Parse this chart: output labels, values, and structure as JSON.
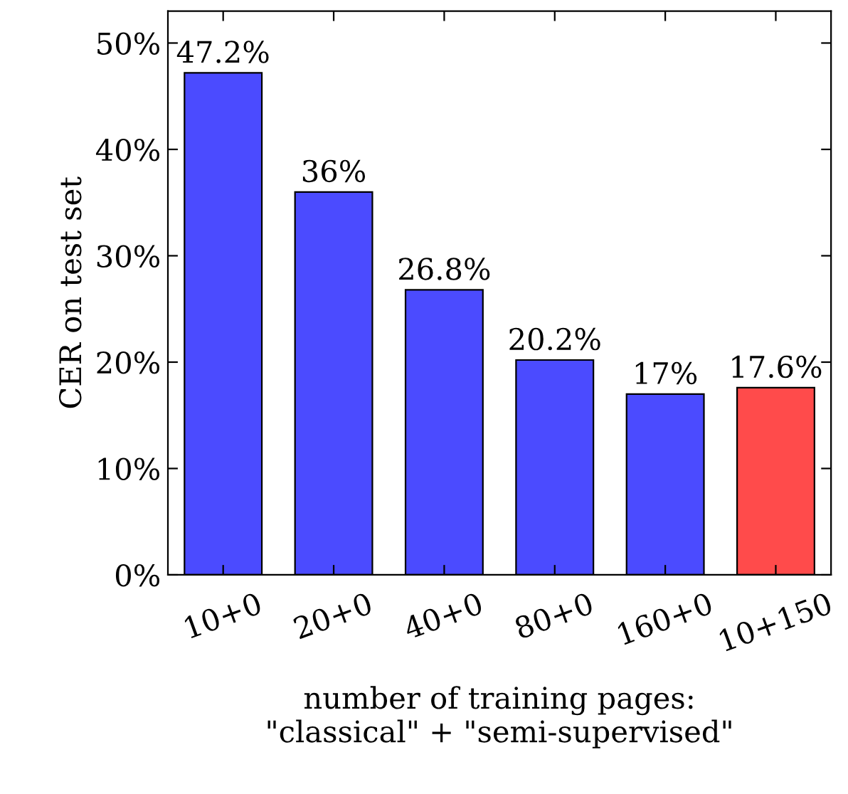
{
  "chart_data": {
    "type": "bar",
    "xlabel": "number of training pages:\n\"classical\" + \"semi-supervised\"",
    "ylabel": "CER on test set",
    "categories": [
      "10+0",
      "20+0",
      "40+0",
      "80+0",
      "160+0",
      "10+150"
    ],
    "values": [
      47.2,
      36,
      26.8,
      20.2,
      17,
      17.6
    ],
    "colors": [
      "#4b4bff",
      "#4b4bff",
      "#4b4bff",
      "#4b4bff",
      "#4b4bff",
      "#ff4b4b"
    ],
    "value_labels": [
      "47.2%",
      "36%",
      "26.8%",
      "20.2%",
      "17%",
      "17.6%"
    ],
    "ylim": [
      0,
      53
    ],
    "yticks": [
      {
        "value": 0,
        "label": "0%"
      },
      {
        "value": 10,
        "label": "10%"
      },
      {
        "value": 20,
        "label": "20%"
      },
      {
        "value": 30,
        "label": "30%"
      },
      {
        "value": 40,
        "label": "40%"
      },
      {
        "value": 50,
        "label": "50%"
      }
    ],
    "grid": false,
    "legend": false
  }
}
